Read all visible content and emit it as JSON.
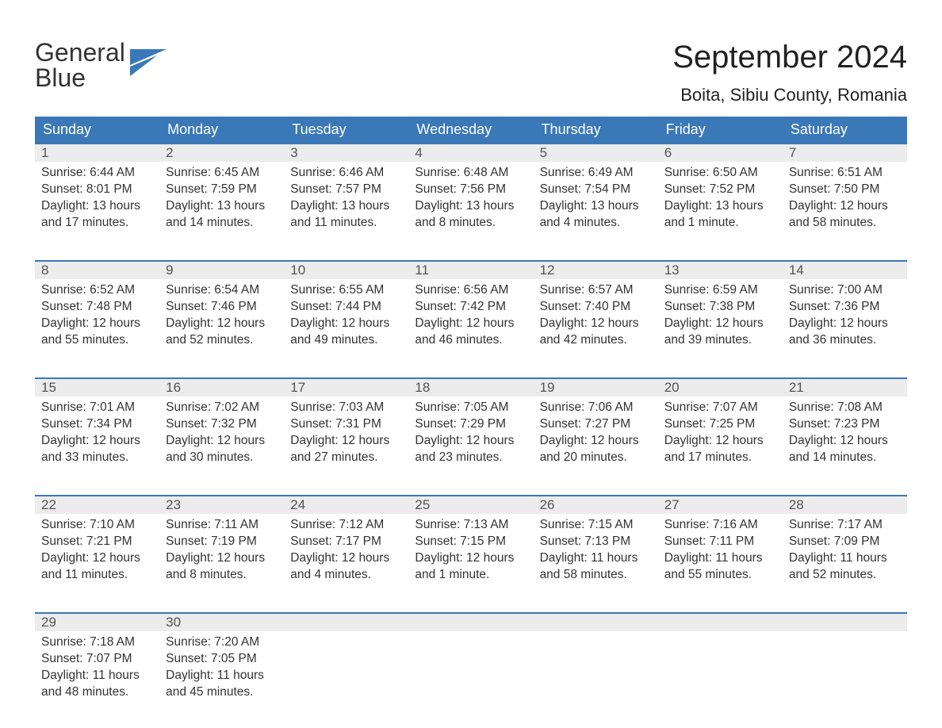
{
  "colors": {
    "header_bg": "#3a78b8",
    "header_text": "#ffffff",
    "daynum_bg": "#ececec",
    "daynum_text": "#545454",
    "body_text": "#333333",
    "week_border": "#3a78b8",
    "logo_blue": "#3a78b8",
    "background": "#ffffff"
  },
  "logo": {
    "line1": "General",
    "line2": "Blue"
  },
  "title": "September 2024",
  "location": "Boita, Sibiu County, Romania",
  "weekdays": [
    "Sunday",
    "Monday",
    "Tuesday",
    "Wednesday",
    "Thursday",
    "Friday",
    "Saturday"
  ],
  "weeks": [
    {
      "days": [
        {
          "n": "1",
          "sunrise": "6:44 AM",
          "sunset": "8:01 PM",
          "daylight": "13 hours and 17 minutes."
        },
        {
          "n": "2",
          "sunrise": "6:45 AM",
          "sunset": "7:59 PM",
          "daylight": "13 hours and 14 minutes."
        },
        {
          "n": "3",
          "sunrise": "6:46 AM",
          "sunset": "7:57 PM",
          "daylight": "13 hours and 11 minutes."
        },
        {
          "n": "4",
          "sunrise": "6:48 AM",
          "sunset": "7:56 PM",
          "daylight": "13 hours and 8 minutes."
        },
        {
          "n": "5",
          "sunrise": "6:49 AM",
          "sunset": "7:54 PM",
          "daylight": "13 hours and 4 minutes."
        },
        {
          "n": "6",
          "sunrise": "6:50 AM",
          "sunset": "7:52 PM",
          "daylight": "13 hours and 1 minute."
        },
        {
          "n": "7",
          "sunrise": "6:51 AM",
          "sunset": "7:50 PM",
          "daylight": "12 hours and 58 minutes."
        }
      ]
    },
    {
      "days": [
        {
          "n": "8",
          "sunrise": "6:52 AM",
          "sunset": "7:48 PM",
          "daylight": "12 hours and 55 minutes."
        },
        {
          "n": "9",
          "sunrise": "6:54 AM",
          "sunset": "7:46 PM",
          "daylight": "12 hours and 52 minutes."
        },
        {
          "n": "10",
          "sunrise": "6:55 AM",
          "sunset": "7:44 PM",
          "daylight": "12 hours and 49 minutes."
        },
        {
          "n": "11",
          "sunrise": "6:56 AM",
          "sunset": "7:42 PM",
          "daylight": "12 hours and 46 minutes."
        },
        {
          "n": "12",
          "sunrise": "6:57 AM",
          "sunset": "7:40 PM",
          "daylight": "12 hours and 42 minutes."
        },
        {
          "n": "13",
          "sunrise": "6:59 AM",
          "sunset": "7:38 PM",
          "daylight": "12 hours and 39 minutes."
        },
        {
          "n": "14",
          "sunrise": "7:00 AM",
          "sunset": "7:36 PM",
          "daylight": "12 hours and 36 minutes."
        }
      ]
    },
    {
      "days": [
        {
          "n": "15",
          "sunrise": "7:01 AM",
          "sunset": "7:34 PM",
          "daylight": "12 hours and 33 minutes."
        },
        {
          "n": "16",
          "sunrise": "7:02 AM",
          "sunset": "7:32 PM",
          "daylight": "12 hours and 30 minutes."
        },
        {
          "n": "17",
          "sunrise": "7:03 AM",
          "sunset": "7:31 PM",
          "daylight": "12 hours and 27 minutes."
        },
        {
          "n": "18",
          "sunrise": "7:05 AM",
          "sunset": "7:29 PM",
          "daylight": "12 hours and 23 minutes."
        },
        {
          "n": "19",
          "sunrise": "7:06 AM",
          "sunset": "7:27 PM",
          "daylight": "12 hours and 20 minutes."
        },
        {
          "n": "20",
          "sunrise": "7:07 AM",
          "sunset": "7:25 PM",
          "daylight": "12 hours and 17 minutes."
        },
        {
          "n": "21",
          "sunrise": "7:08 AM",
          "sunset": "7:23 PM",
          "daylight": "12 hours and 14 minutes."
        }
      ]
    },
    {
      "days": [
        {
          "n": "22",
          "sunrise": "7:10 AM",
          "sunset": "7:21 PM",
          "daylight": "12 hours and 11 minutes."
        },
        {
          "n": "23",
          "sunrise": "7:11 AM",
          "sunset": "7:19 PM",
          "daylight": "12 hours and 8 minutes."
        },
        {
          "n": "24",
          "sunrise": "7:12 AM",
          "sunset": "7:17 PM",
          "daylight": "12 hours and 4 minutes."
        },
        {
          "n": "25",
          "sunrise": "7:13 AM",
          "sunset": "7:15 PM",
          "daylight": "12 hours and 1 minute."
        },
        {
          "n": "26",
          "sunrise": "7:15 AM",
          "sunset": "7:13 PM",
          "daylight": "11 hours and 58 minutes."
        },
        {
          "n": "27",
          "sunrise": "7:16 AM",
          "sunset": "7:11 PM",
          "daylight": "11 hours and 55 minutes."
        },
        {
          "n": "28",
          "sunrise": "7:17 AM",
          "sunset": "7:09 PM",
          "daylight": "11 hours and 52 minutes."
        }
      ]
    },
    {
      "days": [
        {
          "n": "29",
          "sunrise": "7:18 AM",
          "sunset": "7:07 PM",
          "daylight": "11 hours and 48 minutes."
        },
        {
          "n": "30",
          "sunrise": "7:20 AM",
          "sunset": "7:05 PM",
          "daylight": "11 hours and 45 minutes."
        },
        {
          "n": "",
          "sunrise": "",
          "sunset": "",
          "daylight": ""
        },
        {
          "n": "",
          "sunrise": "",
          "sunset": "",
          "daylight": ""
        },
        {
          "n": "",
          "sunrise": "",
          "sunset": "",
          "daylight": ""
        },
        {
          "n": "",
          "sunrise": "",
          "sunset": "",
          "daylight": ""
        },
        {
          "n": "",
          "sunrise": "",
          "sunset": "",
          "daylight": ""
        }
      ]
    }
  ],
  "labels": {
    "sunrise": "Sunrise: ",
    "sunset": "Sunset: ",
    "daylight": "Daylight: "
  }
}
